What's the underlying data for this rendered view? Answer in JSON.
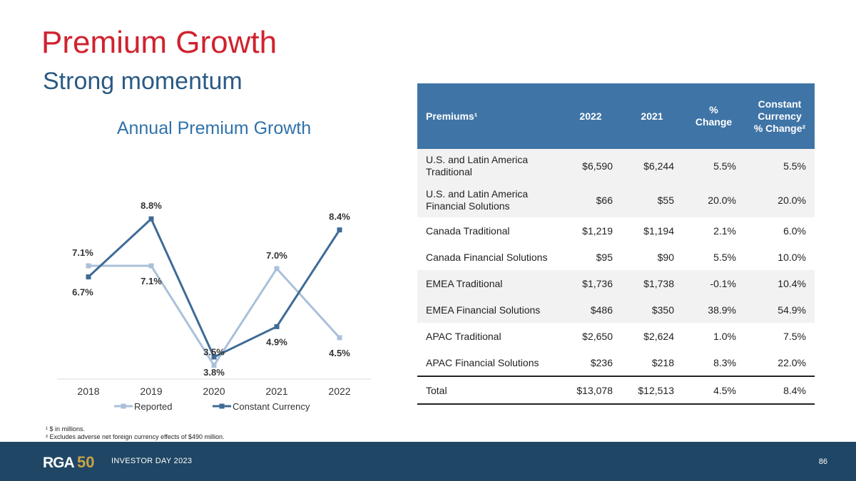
{
  "slide": {
    "title": "Premium Growth",
    "subtitle": "Strong momentum"
  },
  "chart_data": {
    "type": "line",
    "title": "Annual Premium Growth",
    "categories": [
      "2018",
      "2019",
      "2020",
      "2021",
      "2022"
    ],
    "series": [
      {
        "name": "Reported",
        "color": "#aac0da",
        "values": [
          7.1,
          7.1,
          3.5,
          7.0,
          4.5
        ],
        "labels": [
          "7.1%",
          "7.1%",
          "3.5%",
          "7.0%",
          "4.5%"
        ]
      },
      {
        "name": "Constant Currency",
        "color": "#3f6b96",
        "values": [
          6.7,
          8.8,
          3.8,
          4.9,
          8.4
        ],
        "labels": [
          "6.7%",
          "8.8%",
          "3.8%",
          "4.9%",
          "8.4%"
        ]
      }
    ],
    "ylim": [
      3.0,
      9.5
    ],
    "grid": false,
    "legend": "bottom"
  },
  "table": {
    "headers": [
      "Premiums¹",
      "2022",
      "2021",
      "% Change",
      "Constant Currency % Change²"
    ],
    "rows": [
      [
        "U.S. and Latin America Traditional",
        "$6,590",
        "$6,244",
        "5.5%",
        "5.5%"
      ],
      [
        "U.S. and Latin America Financial Solutions",
        "$66",
        "$55",
        "20.0%",
        "20.0%"
      ],
      [
        "Canada Traditional",
        "$1,219",
        "$1,194",
        "2.1%",
        "6.0%"
      ],
      [
        "Canada Financial Solutions",
        "$95",
        "$90",
        "5.5%",
        "10.0%"
      ],
      [
        "EMEA Traditional",
        "$1,736",
        "$1,738",
        "-0.1%",
        "10.4%"
      ],
      [
        "EMEA Financial Solutions",
        "$486",
        "$350",
        "38.9%",
        "54.9%"
      ],
      [
        "APAC Traditional",
        "$2,650",
        "$2,624",
        "1.0%",
        "7.5%"
      ],
      [
        "APAC Financial Solutions",
        "$236",
        "$218",
        "8.3%",
        "22.0%"
      ],
      [
        "Total",
        "$13,078",
        "$12,513",
        "4.5%",
        "8.4%"
      ]
    ]
  },
  "footnotes": [
    "¹ $ in millions.",
    "² Excludes adverse net foreign currency effects of $490 million."
  ],
  "footer": {
    "logo_text": "RGA",
    "logo_number": "50",
    "event": "INVESTOR DAY 2023",
    "page": "86"
  },
  "colors": {
    "title": "#d0222e",
    "subtitle": "#2a5a84",
    "table_header": "#3f74a6",
    "footer_bg": "#1f4664"
  }
}
